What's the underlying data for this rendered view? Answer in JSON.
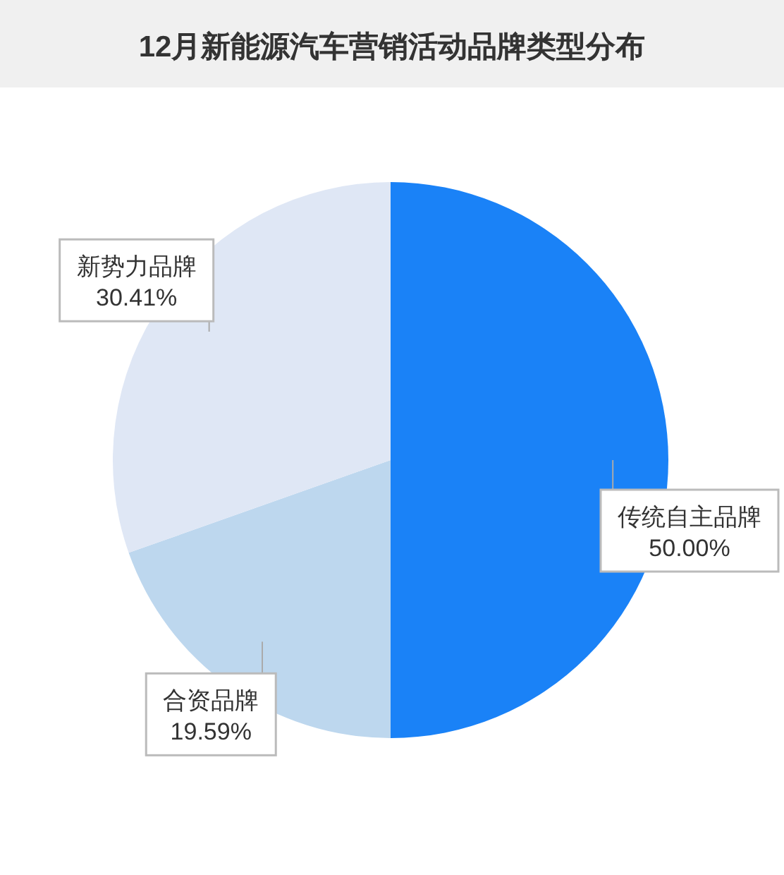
{
  "chart_data": {
    "type": "pie",
    "title": "12月新能源汽车营销活动品牌类型分布",
    "categories": [
      "传统自主品牌",
      "合资品牌",
      "新势力品牌"
    ],
    "values": [
      50.0,
      19.59,
      30.41
    ],
    "colors": [
      "#1a82f7",
      "#bdd7ee",
      "#dfe7f5"
    ],
    "value_labels": [
      "50.00%",
      "19.59%",
      "30.41%"
    ],
    "legend": false
  }
}
